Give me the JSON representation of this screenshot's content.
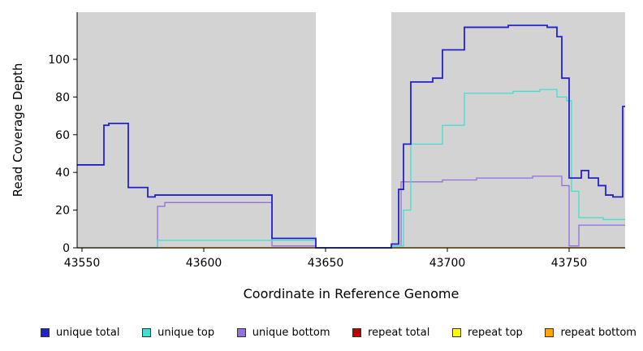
{
  "chart_data": {
    "type": "line",
    "style": "step-after",
    "title": "",
    "xlabel": "Coordinate in Reference Genome",
    "ylabel": "Read Coverage Depth",
    "x_range": [
      43548,
      43773
    ],
    "y_range": [
      0,
      125
    ],
    "x_ticks": [
      43550,
      43600,
      43650,
      43700,
      43750
    ],
    "y_ticks": [
      0,
      20,
      40,
      60,
      80,
      100
    ],
    "grid": false,
    "plot_bg": "#d3d3d3",
    "mask_region": {
      "x0": 43646,
      "x1": 43677,
      "color": "#ffffff"
    },
    "series": [
      {
        "name": "repeat total",
        "color": "#bb0000",
        "width": 1.3,
        "points": [
          [
            43548,
            0
          ]
        ]
      },
      {
        "name": "repeat top",
        "color": "#ffff00",
        "width": 1.3,
        "points": [
          [
            43548,
            0
          ]
        ]
      },
      {
        "name": "repeat bottom",
        "color": "#ffa500",
        "width": 1.3,
        "points": [
          [
            43548,
            0
          ]
        ]
      },
      {
        "name": "unique bottom",
        "color": "#9370db",
        "width": 1.3,
        "points": [
          [
            43548,
            0
          ],
          [
            43581,
            22
          ],
          [
            43584,
            24
          ],
          [
            43628,
            1
          ],
          [
            43646,
            0
          ],
          [
            43677,
            1
          ],
          [
            43681,
            35
          ],
          [
            43698,
            36
          ],
          [
            43712,
            37
          ],
          [
            43735,
            38
          ],
          [
            43747,
            33
          ],
          [
            43750,
            1
          ],
          [
            43754,
            12
          ]
        ]
      },
      {
        "name": "unique top",
        "color": "#40e0d0",
        "width": 1.3,
        "points": [
          [
            43548,
            0
          ],
          [
            43581,
            4
          ],
          [
            43646,
            0
          ],
          [
            43677,
            1
          ],
          [
            43682,
            20
          ],
          [
            43685,
            55
          ],
          [
            43698,
            65
          ],
          [
            43707,
            82
          ],
          [
            43727,
            83
          ],
          [
            43738,
            84
          ],
          [
            43745,
            80
          ],
          [
            43749,
            78
          ],
          [
            43751,
            30
          ],
          [
            43754,
            16
          ],
          [
            43764,
            15
          ]
        ]
      },
      {
        "name": "unique total",
        "color": "#2222cc",
        "width": 1.8,
        "points": [
          [
            43548,
            44
          ],
          [
            43559,
            65
          ],
          [
            43561,
            66
          ],
          [
            43569,
            32
          ],
          [
            43577,
            27
          ],
          [
            43580,
            28
          ],
          [
            43628,
            5
          ],
          [
            43646,
            0
          ],
          [
            43677,
            2
          ],
          [
            43680,
            31
          ],
          [
            43682,
            55
          ],
          [
            43685,
            88
          ],
          [
            43694,
            90
          ],
          [
            43698,
            105
          ],
          [
            43707,
            117
          ],
          [
            43725,
            118
          ],
          [
            43741,
            117
          ],
          [
            43745,
            112
          ],
          [
            43747,
            90
          ],
          [
            43750,
            37
          ],
          [
            43755,
            41
          ],
          [
            43758,
            37
          ],
          [
            43762,
            33
          ],
          [
            43765,
            28
          ],
          [
            43768,
            27
          ],
          [
            43772,
            75
          ]
        ]
      }
    ],
    "legend_position": "bottom",
    "legend": [
      {
        "label": "unique total",
        "color": "#2222cc"
      },
      {
        "label": "unique top",
        "color": "#40e0d0"
      },
      {
        "label": "unique bottom",
        "color": "#9370db"
      },
      {
        "label": "repeat total",
        "color": "#bb0000"
      },
      {
        "label": "repeat top",
        "color": "#ffff00"
      },
      {
        "label": "repeat bottom",
        "color": "#ffa500"
      }
    ]
  }
}
